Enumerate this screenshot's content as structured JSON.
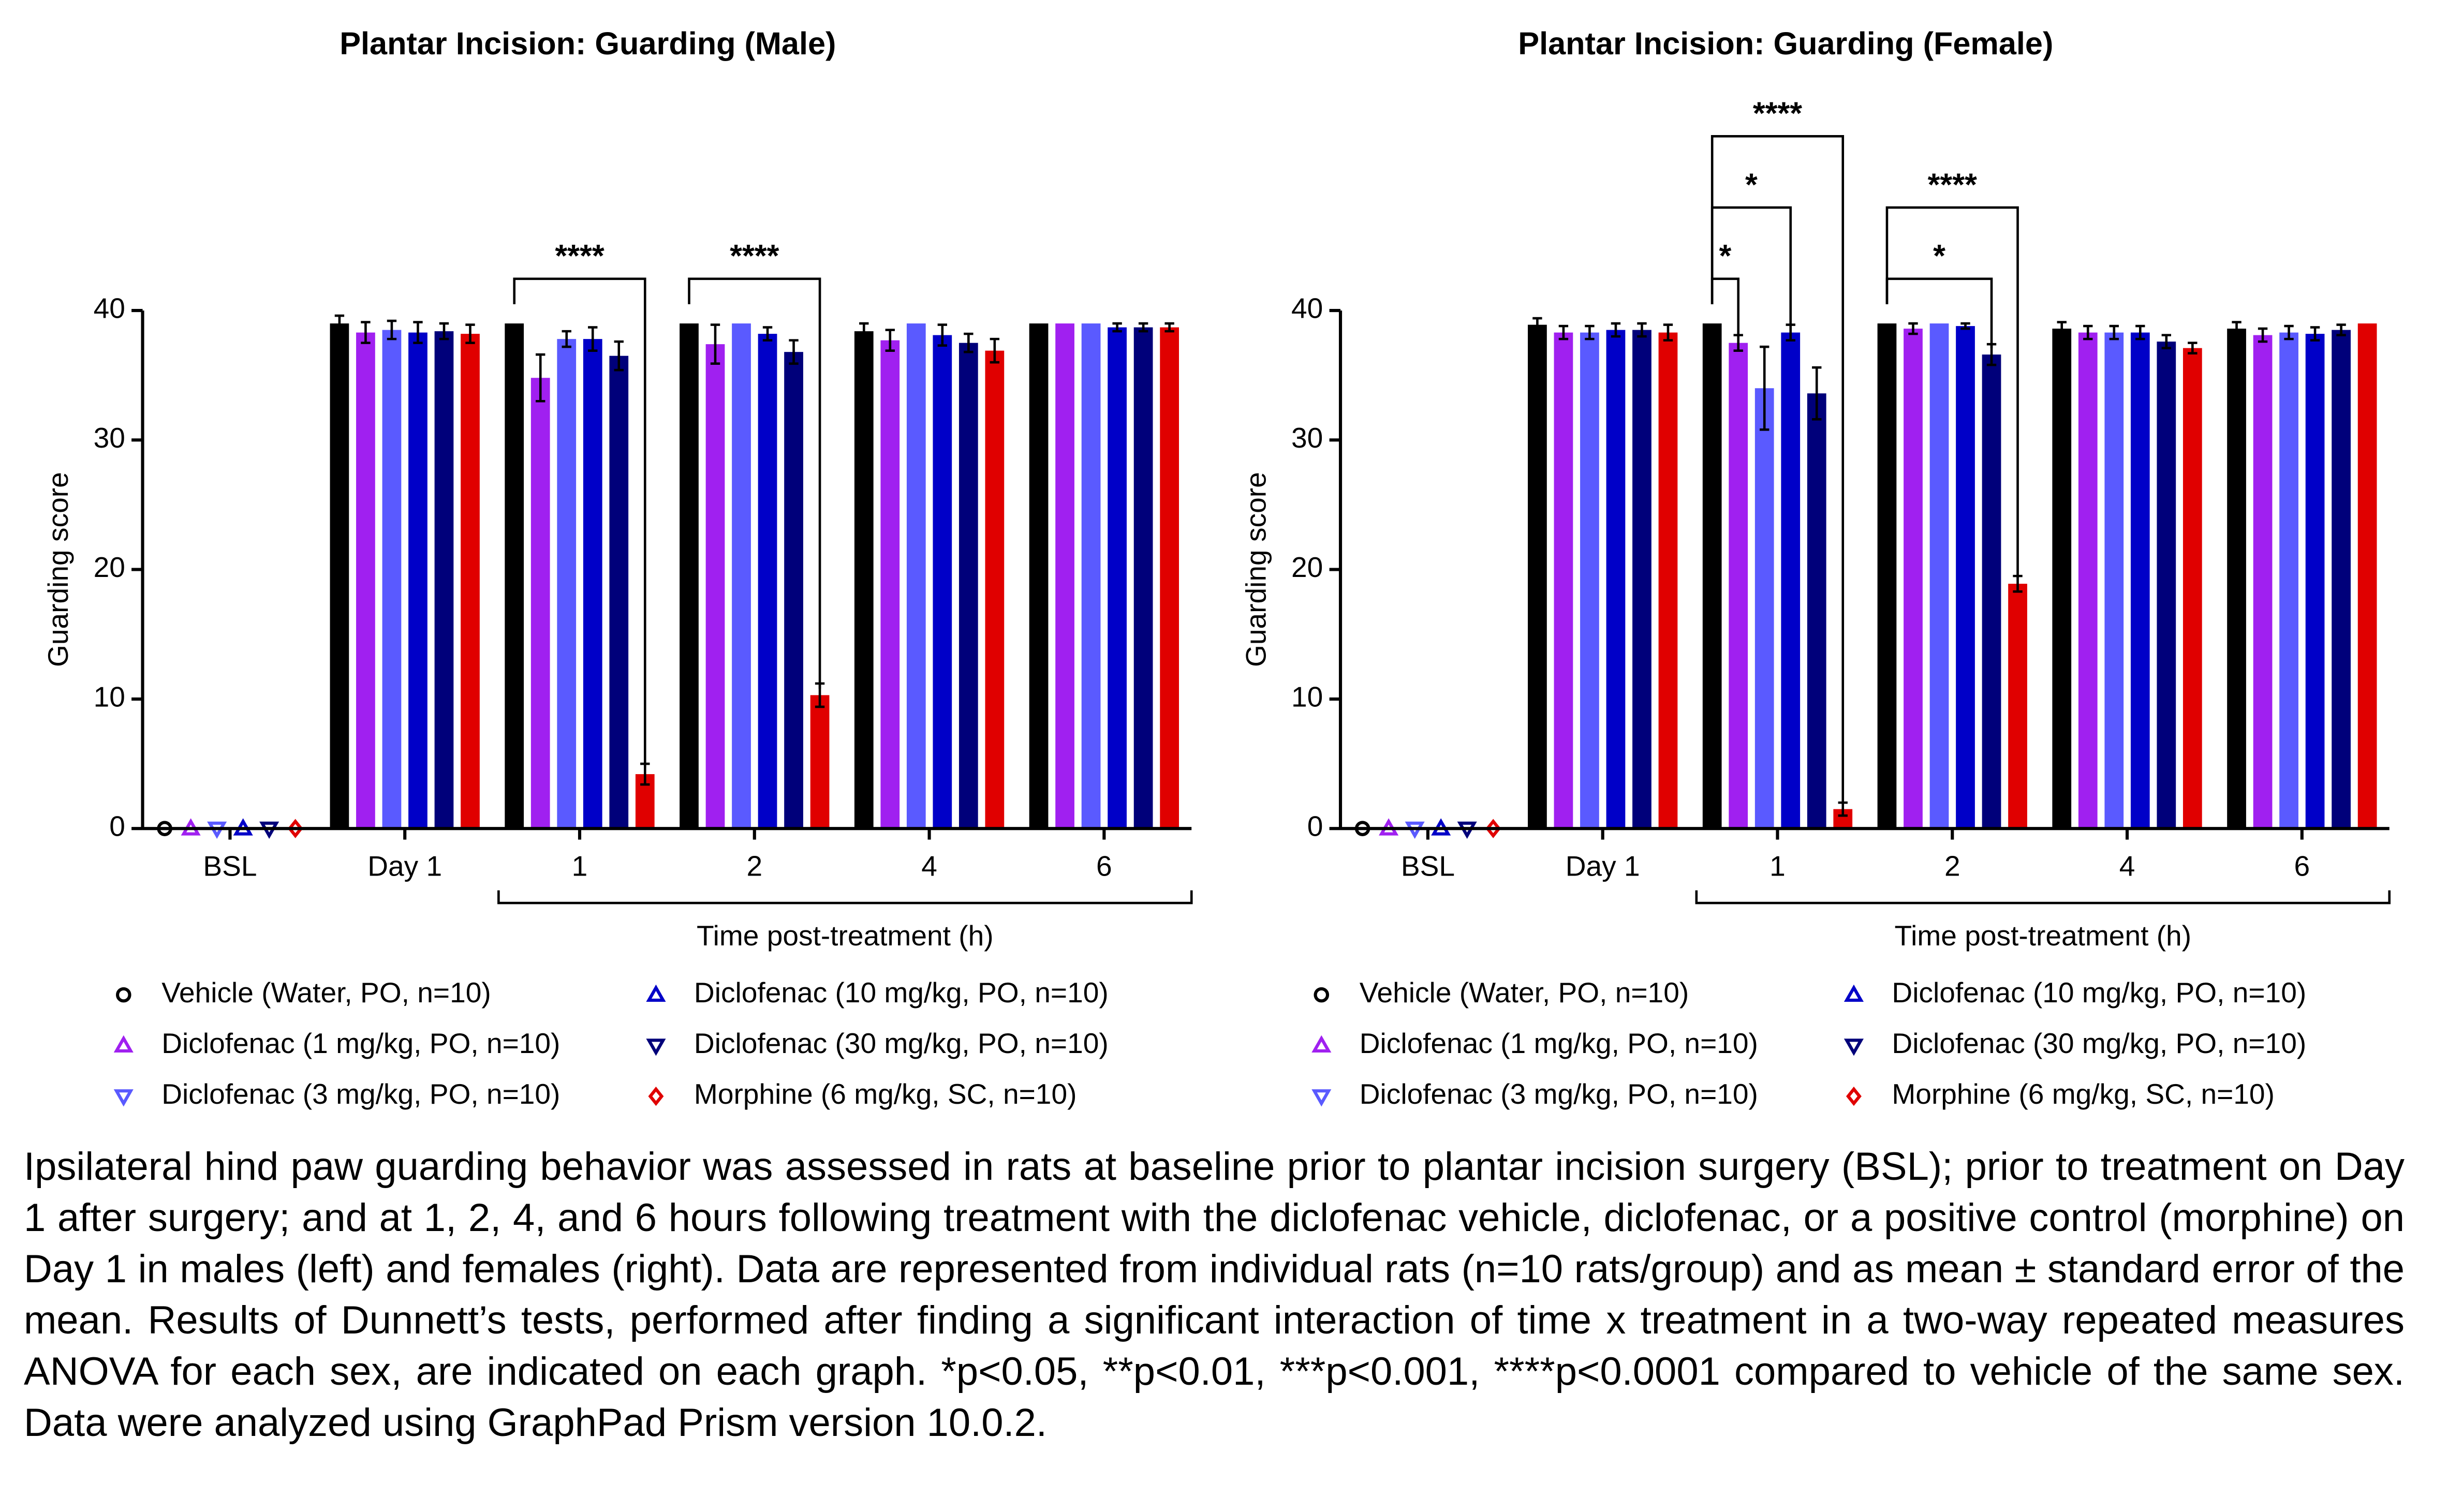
{
  "chart_data": [
    {
      "type": "bar",
      "title": "Plantar Incision: Guarding (Male)",
      "ylabel": "Guarding score",
      "xlabel": "Time post-treatment (h)",
      "categories": [
        "BSL",
        "Day 1",
        "1",
        "2",
        "4",
        "6"
      ],
      "ylim": [
        0,
        40
      ],
      "yticks": [
        0,
        10,
        20,
        30,
        40
      ],
      "series": [
        {
          "name": "Vehicle (Water, PO, n=10)",
          "color": "#000000",
          "marker": "circle",
          "values": [
            0,
            39,
            39,
            39,
            38.4,
            39
          ],
          "errors": [
            0,
            0.6,
            0,
            0,
            0.6,
            0
          ]
        },
        {
          "name": "Diclofenac (1 mg/kg, PO, n=10)",
          "color": "#a020f0",
          "marker": "triangle-up",
          "values": [
            0,
            38.3,
            34.8,
            37.4,
            37.7,
            39
          ],
          "errors": [
            0,
            0.8,
            1.8,
            1.5,
            0.8,
            0
          ]
        },
        {
          "name": "Diclofenac (3 mg/kg, PO, n=10)",
          "color": "#5a5aff",
          "marker": "triangle-down",
          "values": [
            0,
            38.5,
            37.8,
            39,
            39,
            39
          ],
          "errors": [
            0,
            0.7,
            0.6,
            0,
            0,
            0
          ]
        },
        {
          "name": "Diclofenac (10 mg/kg, PO, n=10)",
          "color": "#0000c8",
          "marker": "triangle-up",
          "values": [
            0,
            38.3,
            37.8,
            38.2,
            38.1,
            38.7
          ],
          "errors": [
            0,
            0.8,
            0.9,
            0.5,
            0.8,
            0.3
          ]
        },
        {
          "name": "Diclofenac (30 mg/kg, PO, n=10)",
          "color": "#00007a",
          "marker": "triangle-down",
          "values": [
            0,
            38.4,
            36.5,
            36.8,
            37.5,
            38.7
          ],
          "errors": [
            0,
            0.6,
            1.1,
            0.9,
            0.7,
            0.3
          ]
        },
        {
          "name": "Morphine (6 mg/kg, SC, n=10)",
          "color": "#e00000",
          "marker": "diamond",
          "values": [
            0,
            38.2,
            4.2,
            10.3,
            36.9,
            38.7
          ],
          "errors": [
            0,
            0.7,
            0.8,
            0.9,
            0.9,
            0.3
          ]
        }
      ],
      "annotations": [
        {
          "label": "****",
          "category": 2,
          "series": [
            0,
            5
          ]
        },
        {
          "label": "****",
          "category": 3,
          "series": [
            0,
            5
          ]
        }
      ]
    },
    {
      "type": "bar",
      "title": "Plantar Incision: Guarding (Female)",
      "ylabel": "Guarding score",
      "xlabel": "Time post-treatment (h)",
      "categories": [
        "BSL",
        "Day 1",
        "1",
        "2",
        "4",
        "6"
      ],
      "ylim": [
        0,
        40
      ],
      "yticks": [
        0,
        10,
        20,
        30,
        40
      ],
      "series": [
        {
          "name": "Vehicle (Water, PO, n=10)",
          "color": "#000000",
          "marker": "circle",
          "values": [
            0,
            38.9,
            39,
            39,
            38.6,
            38.6
          ],
          "errors": [
            0,
            0.5,
            0,
            0,
            0.5,
            0.5
          ]
        },
        {
          "name": "Diclofenac (1 mg/kg, PO, n=10)",
          "color": "#a020f0",
          "marker": "triangle-up",
          "values": [
            0,
            38.3,
            37.5,
            38.6,
            38.3,
            38.1
          ],
          "errors": [
            0,
            0.5,
            0.6,
            0.4,
            0.5,
            0.5
          ]
        },
        {
          "name": "Diclofenac (3 mg/kg, PO, n=10)",
          "color": "#5a5aff",
          "marker": "triangle-down",
          "values": [
            0,
            38.3,
            34,
            39,
            38.3,
            38.3
          ],
          "errors": [
            0,
            0.5,
            3.2,
            0,
            0.5,
            0.5
          ]
        },
        {
          "name": "Diclofenac (10 mg/kg, PO, n=10)",
          "color": "#0000c8",
          "marker": "triangle-up",
          "values": [
            0,
            38.5,
            38.3,
            38.8,
            38.3,
            38.2
          ],
          "errors": [
            0,
            0.5,
            0.6,
            0.2,
            0.5,
            0.5
          ]
        },
        {
          "name": "Diclofenac (30 mg/kg, PO, n=10)",
          "color": "#00007a",
          "marker": "triangle-down",
          "values": [
            0,
            38.5,
            33.6,
            36.6,
            37.6,
            38.5
          ],
          "errors": [
            0,
            0.5,
            2,
            0.8,
            0.5,
            0.4
          ]
        },
        {
          "name": "Morphine (6 mg/kg, SC, n=10)",
          "color": "#e00000",
          "marker": "diamond",
          "values": [
            0,
            38.3,
            1.5,
            18.9,
            37.1,
            39
          ],
          "errors": [
            0,
            0.6,
            0.5,
            0.6,
            0.4,
            0
          ]
        }
      ],
      "annotations": [
        {
          "label": "*",
          "category": 2,
          "series": [
            0,
            1
          ]
        },
        {
          "label": "*",
          "category": 2,
          "series": [
            0,
            3
          ]
        },
        {
          "label": "****",
          "category": 2,
          "series": [
            0,
            5
          ]
        },
        {
          "label": "*",
          "category": 3,
          "series": [
            0,
            4
          ]
        },
        {
          "label": "****",
          "category": 3,
          "series": [
            0,
            5
          ]
        }
      ]
    }
  ],
  "caption": "Ipsilateral hind paw guarding behavior was assessed in rats at baseline prior to plantar incision surgery (BSL); prior to treatment on Day 1 after surgery; and at 1, 2, 4, and 6 hours following treatment with the diclofenac vehicle, diclofenac, or a positive control (morphine) on Day 1 in males (left) and females (right). Data are represented from individual rats (n=10 rats/group) and as mean ± standard error of the mean. Results of Dunnett’s tests, performed after finding a significant interaction of time x treatment in a two-way repeated measures ANOVA for each sex, are indicated on each graph. *p<0.05, **p<0.01, ***p<0.001, ****p<0.0001 compared to vehicle of the same sex. Data were analyzed using GraphPad Prism version 10.0.2."
}
